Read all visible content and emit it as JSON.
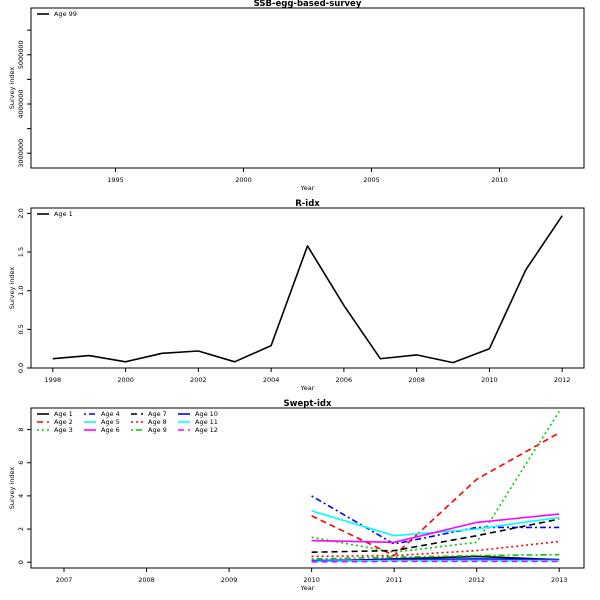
{
  "chart_data": [
    {
      "type": "line",
      "title": "SSB-egg-based-survey",
      "xlabel": "Year",
      "ylabel": "Survey index",
      "xlim": [
        1991.7,
        2013.3
      ],
      "ylim": [
        2700000,
        5950000
      ],
      "x_ticks": [
        1995,
        2000,
        2005,
        2010
      ],
      "y_ticks": [
        3000000,
        3500000,
        4000000,
        4500000,
        5000000,
        5500000
      ],
      "y_tick_labels": [
        "3000000",
        "",
        "4000000",
        "",
        "5000000",
        ""
      ],
      "legend_position": "top-left",
      "series": [
        {
          "name": "Age 99",
          "color": "#000000",
          "dash": "solid",
          "x": [],
          "y": []
        }
      ]
    },
    {
      "type": "line",
      "title": "R-idx",
      "xlabel": "Year",
      "ylabel": "Survey index",
      "xlim": [
        1997.4,
        2012.6
      ],
      "ylim": [
        0,
        2.07
      ],
      "x_ticks": [
        1998,
        2000,
        2002,
        2004,
        2006,
        2008,
        2010,
        2012
      ],
      "y_ticks": [
        0,
        0.5,
        1,
        1.5,
        2
      ],
      "y_tick_labels": [
        "0.0",
        "0.5",
        "1.0",
        "1.5",
        "2.0"
      ],
      "legend_position": "top-left",
      "series": [
        {
          "name": "Age 1",
          "color": "#000000",
          "dash": "solid",
          "x": [
            1998,
            1999,
            2000,
            2001,
            2002,
            2003,
            2004,
            2005,
            2006,
            2007,
            2008,
            2009,
            2010,
            2011,
            2012
          ],
          "y": [
            0.12,
            0.16,
            0.08,
            0.19,
            0.22,
            0.08,
            0.29,
            1.58,
            0.81,
            0.12,
            0.17,
            0.07,
            0.25,
            1.27,
            1.97
          ]
        }
      ]
    },
    {
      "type": "line",
      "title": "Swept-idx",
      "xlabel": "Year",
      "ylabel": "Survey index",
      "xlim": [
        2006.6,
        2013.3
      ],
      "ylim": [
        -0.35,
        9.3
      ],
      "x_ticks": [
        2007,
        2008,
        2009,
        2010,
        2011,
        2012,
        2013
      ],
      "y_ticks": [
        0,
        2,
        4,
        6,
        8
      ],
      "y_tick_labels": [
        "0",
        "2",
        "4",
        "6",
        "8"
      ],
      "legend_position": "top-left",
      "series": [
        {
          "name": "Age 1",
          "color": "#000000",
          "dash": "solid",
          "x": [
            2010,
            2011,
            2012,
            2013
          ],
          "y": [
            0.05,
            0.2,
            0.35,
            0.15
          ]
        },
        {
          "name": "Age 2",
          "color": "#ff0000",
          "dash": "dashed",
          "x": [
            2010,
            2011,
            2012,
            2013
          ],
          "y": [
            2.8,
            0.4,
            5.0,
            7.8
          ]
        },
        {
          "name": "Age 3",
          "color": "#00cd00",
          "dash": "dotted",
          "x": [
            2010,
            2011,
            2012,
            2013
          ],
          "y": [
            1.5,
            0.6,
            1.2,
            9.1
          ]
        },
        {
          "name": "Age 4",
          "color": "#0000ff",
          "dash": "dotdash",
          "x": [
            2010,
            2011,
            2012,
            2013
          ],
          "y": [
            4.0,
            1.1,
            2.1,
            2.1
          ]
        },
        {
          "name": "Age 5",
          "color": "#00ffff",
          "dash": "solid",
          "x": [
            2010,
            2011,
            2012,
            2013
          ],
          "y": [
            3.1,
            1.6,
            2.0,
            2.7
          ]
        },
        {
          "name": "Age 6",
          "color": "#ff00ff",
          "dash": "solid",
          "x": [
            2010,
            2011,
            2012,
            2013
          ],
          "y": [
            1.3,
            1.2,
            2.4,
            2.9
          ]
        },
        {
          "name": "Age 7",
          "color": "#000000",
          "dash": "dashed",
          "x": [
            2010,
            2011,
            2012,
            2013
          ],
          "y": [
            0.6,
            0.7,
            1.6,
            2.6
          ]
        },
        {
          "name": "Age 8",
          "color": "#ff0000",
          "dash": "dotted",
          "x": [
            2010,
            2011,
            2012,
            2013
          ],
          "y": [
            0.35,
            0.4,
            0.7,
            1.25
          ]
        },
        {
          "name": "Age 9",
          "color": "#00cd00",
          "dash": "dotdash",
          "x": [
            2010,
            2011,
            2012,
            2013
          ],
          "y": [
            0.2,
            0.3,
            0.4,
            0.45
          ]
        },
        {
          "name": "Age 10",
          "color": "#0000ff",
          "dash": "solid",
          "x": [
            2010,
            2011,
            2012,
            2013
          ],
          "y": [
            0.1,
            0.15,
            0.2,
            0.15
          ]
        },
        {
          "name": "Age 11",
          "color": "#00ffff",
          "dash": "solid",
          "x": [
            2010,
            2011,
            2012,
            2013
          ],
          "y": [
            0.05,
            0.1,
            0.1,
            0.1
          ]
        },
        {
          "name": "Age 12",
          "color": "#ff00ff",
          "dash": "dashed",
          "x": [
            2010,
            2011,
            2012,
            2013
          ],
          "y": [
            0.02,
            0.05,
            0.05,
            0.05
          ]
        }
      ]
    }
  ]
}
